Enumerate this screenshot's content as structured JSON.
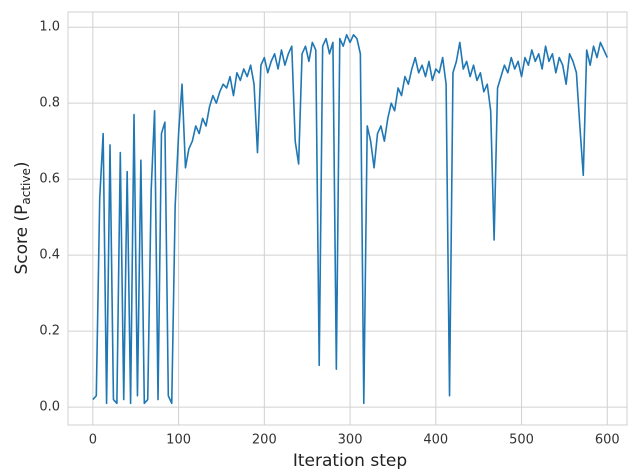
{
  "chart_data": {
    "type": "line",
    "xlabel": "Iteration step",
    "ylabel_parts": [
      "Score (P",
      "active",
      ")"
    ],
    "xlim": [
      -29,
      623
    ],
    "ylim": [
      -0.047,
      1.04
    ],
    "xticks": [
      0,
      100,
      200,
      300,
      400,
      500,
      600
    ],
    "yticks": [
      {
        "value": 0,
        "label": "0.0"
      },
      0.2,
      0.4,
      0.6,
      0.8,
      {
        "value": 1,
        "label": "1.0"
      }
    ],
    "grid": true,
    "x": [
      0,
      4,
      8,
      12,
      16,
      20,
      24,
      28,
      32,
      36,
      40,
      44,
      48,
      52,
      56,
      60,
      64,
      68,
      72,
      76,
      80,
      84,
      88,
      92,
      96,
      100,
      104,
      108,
      112,
      116,
      120,
      124,
      128,
      132,
      136,
      140,
      144,
      148,
      152,
      156,
      160,
      164,
      168,
      172,
      176,
      180,
      184,
      188,
      192,
      196,
      200,
      204,
      208,
      212,
      216,
      220,
      224,
      228,
      232,
      236,
      240,
      244,
      248,
      252,
      256,
      260,
      264,
      268,
      272,
      276,
      280,
      284,
      288,
      292,
      296,
      300,
      304,
      308,
      312,
      316,
      320,
      324,
      328,
      332,
      336,
      340,
      344,
      348,
      352,
      356,
      360,
      364,
      368,
      372,
      376,
      380,
      384,
      388,
      392,
      396,
      400,
      404,
      408,
      412,
      416,
      420,
      424,
      428,
      432,
      436,
      440,
      444,
      448,
      452,
      456,
      460,
      464,
      468,
      472,
      476,
      480,
      484,
      488,
      492,
      496,
      500,
      504,
      508,
      512,
      516,
      520,
      524,
      528,
      532,
      536,
      540,
      544,
      548,
      552,
      556,
      560,
      564,
      568,
      572,
      576,
      580,
      584,
      588,
      592,
      596,
      600
    ],
    "series": [
      {
        "name": "score",
        "color": "#1f77b4",
        "values": [
          0.02,
          0.03,
          0.55,
          0.72,
          0.01,
          0.69,
          0.02,
          0.01,
          0.67,
          0.02,
          0.62,
          0.01,
          0.77,
          0.03,
          0.65,
          0.01,
          0.02,
          0.57,
          0.78,
          0.02,
          0.72,
          0.75,
          0.03,
          0.01,
          0.53,
          0.72,
          0.85,
          0.63,
          0.68,
          0.7,
          0.74,
          0.72,
          0.76,
          0.74,
          0.79,
          0.82,
          0.8,
          0.83,
          0.85,
          0.84,
          0.87,
          0.82,
          0.88,
          0.86,
          0.89,
          0.87,
          0.9,
          0.85,
          0.67,
          0.9,
          0.92,
          0.88,
          0.91,
          0.93,
          0.89,
          0.94,
          0.9,
          0.93,
          0.95,
          0.7,
          0.64,
          0.93,
          0.95,
          0.91,
          0.96,
          0.94,
          0.11,
          0.95,
          0.97,
          0.93,
          0.96,
          0.1,
          0.97,
          0.95,
          0.98,
          0.96,
          0.98,
          0.97,
          0.93,
          0.01,
          0.74,
          0.7,
          0.63,
          0.72,
          0.74,
          0.7,
          0.76,
          0.8,
          0.78,
          0.84,
          0.82,
          0.87,
          0.85,
          0.89,
          0.92,
          0.88,
          0.9,
          0.87,
          0.91,
          0.86,
          0.89,
          0.88,
          0.92,
          0.85,
          0.03,
          0.88,
          0.91,
          0.96,
          0.89,
          0.91,
          0.87,
          0.9,
          0.86,
          0.88,
          0.83,
          0.85,
          0.78,
          0.44,
          0.84,
          0.87,
          0.9,
          0.88,
          0.92,
          0.89,
          0.91,
          0.87,
          0.92,
          0.9,
          0.94,
          0.91,
          0.93,
          0.89,
          0.95,
          0.91,
          0.93,
          0.88,
          0.92,
          0.9,
          0.85,
          0.93,
          0.91,
          0.88,
          0.74,
          0.61,
          0.94,
          0.9,
          0.95,
          0.92,
          0.96,
          0.94,
          0.92
        ]
      }
    ]
  }
}
